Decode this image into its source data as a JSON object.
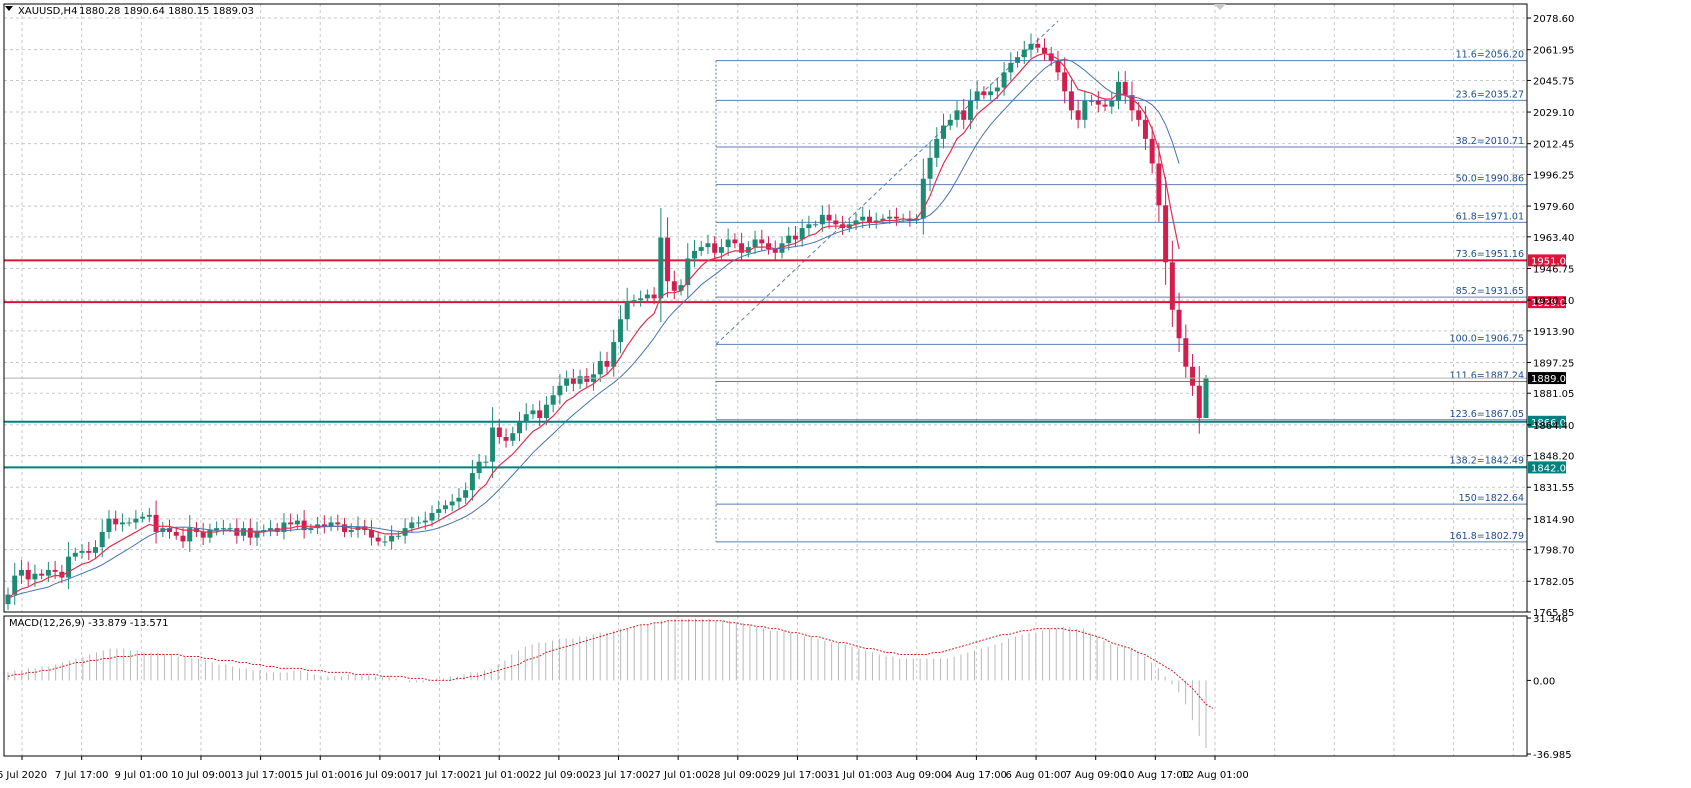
{
  "header": {
    "symbol": "XAUUSD,H4",
    "ohlc": "1880.28 1890.64 1880.15 1889.03"
  },
  "macd": {
    "label": "MACD(12,26,9) -33.879 -13.571",
    "ticks": [
      "31.346",
      "0.00",
      "-36.985"
    ],
    "histogram": [
      4,
      5,
      5,
      6,
      6,
      7,
      7,
      8,
      9,
      10,
      11,
      12,
      13,
      14,
      15,
      16,
      16,
      16,
      15,
      15,
      14,
      14,
      14,
      13,
      13,
      12,
      12,
      11,
      11,
      10,
      9,
      8,
      8,
      7,
      6,
      6,
      5,
      5,
      4,
      4,
      4,
      4,
      5,
      5,
      4,
      3,
      2,
      2,
      2,
      2,
      3,
      3,
      3,
      3,
      2,
      2,
      2,
      1,
      0,
      -1,
      -1,
      -1,
      0,
      1,
      1,
      2,
      2,
      3,
      4,
      4,
      5,
      6,
      8,
      10,
      13,
      15,
      17,
      18,
      19,
      19,
      20,
      21,
      21,
      21,
      22,
      22,
      23,
      24,
      24,
      25,
      26,
      26,
      27,
      28,
      28,
      29,
      30,
      30,
      31,
      31,
      31,
      31,
      31,
      31,
      30,
      30,
      30,
      29,
      29,
      28,
      27,
      26,
      25,
      25,
      25,
      24,
      23,
      22,
      22,
      21,
      20,
      19,
      19,
      18,
      17,
      16,
      15,
      14,
      13,
      12,
      12,
      11,
      11,
      11,
      11,
      11,
      11,
      11,
      11,
      12,
      13,
      14,
      15,
      16,
      17,
      18,
      19,
      21,
      22,
      23,
      24,
      24,
      25,
      26,
      26,
      27,
      27,
      26,
      26,
      24,
      22,
      20,
      18,
      17,
      17,
      16,
      15,
      12,
      9,
      6,
      2,
      -2,
      -6,
      -12,
      -20,
      -28,
      -34
    ],
    "signal": [
      2,
      3,
      3,
      4,
      4,
      5,
      5,
      6,
      7,
      8,
      9,
      9,
      10,
      10,
      11,
      11,
      12,
      12,
      12,
      13,
      13,
      13,
      13,
      13,
      13,
      13,
      12,
      12,
      12,
      11,
      11,
      10,
      10,
      10,
      9,
      9,
      8,
      8,
      7,
      7,
      6,
      6,
      6,
      6,
      5,
      5,
      5,
      4,
      4,
      4,
      4,
      3,
      3,
      3,
      3,
      2,
      2,
      2,
      2,
      1,
      1,
      1,
      0,
      0,
      0,
      0,
      1,
      1,
      2,
      2,
      3,
      4,
      5,
      6,
      7,
      8,
      10,
      11,
      12,
      14,
      15,
      16,
      17,
      18,
      19,
      20,
      21,
      22,
      23,
      24,
      25,
      26,
      27,
      28,
      28,
      29,
      29,
      30,
      30,
      30,
      30,
      30,
      30,
      30,
      30,
      30,
      29,
      29,
      28,
      28,
      27,
      27,
      26,
      26,
      25,
      24,
      24,
      23,
      22,
      22,
      21,
      20,
      19,
      19,
      18,
      17,
      16,
      16,
      15,
      14,
      14,
      13,
      13,
      13,
      13,
      13,
      14,
      14,
      15,
      16,
      17,
      18,
      19,
      20,
      21,
      22,
      23,
      23,
      24,
      25,
      25,
      26,
      26,
      26,
      26,
      26,
      25,
      25,
      24,
      23,
      22,
      21,
      19,
      18,
      17,
      16,
      14,
      13,
      11,
      9,
      7,
      5,
      2,
      -1,
      -4,
      -8,
      -12,
      -14
    ]
  },
  "chart_data": {
    "type": "candlestick",
    "ylim": [
      1765.85,
      2086
    ],
    "y_ticks": [
      "2078.60",
      "2061.95",
      "2045.75",
      "2029.10",
      "2012.45",
      "1996.25",
      "1979.60",
      "1963.40",
      "1946.75",
      "1930.10",
      "1913.90",
      "1897.25",
      "1881.05",
      "1864.40",
      "1848.20",
      "1831.55",
      "1814.90",
      "1798.70",
      "1782.05",
      "1765.85"
    ],
    "x_labels": [
      "6 Jul 2020",
      "7 Jul 17:00",
      "9 Jul 01:00",
      "10 Jul 09:00",
      "13 Jul 17:00",
      "15 Jul 01:00",
      "16 Jul 09:00",
      "17 Jul 17:00",
      "21 Jul 01:00",
      "22 Jul 09:00",
      "23 Jul 17:00",
      "27 Jul 01:00",
      "28 Jul 09:00",
      "29 Jul 17:00",
      "31 Jul 01:00",
      "3 Aug 09:00",
      "4 Aug 17:00",
      "6 Aug 01:00",
      "7 Aug 09:00",
      "10 Aug 17:00",
      "12 Aug 01:00"
    ],
    "current_price": "1889.03",
    "horizontal_levels": [
      {
        "label": "1951.00",
        "value": 1951.0,
        "color": "#dc143c"
      },
      {
        "label": "1929.00",
        "value": 1929.0,
        "color": "#dc143c"
      },
      {
        "label": "1866.00",
        "value": 1866.0,
        "color": "#008080"
      },
      {
        "label": "1842.00",
        "value": 1842.0,
        "color": "#008080"
      }
    ],
    "fibonacci": [
      {
        "label": "11.6=2056.20",
        "value": 2056.2
      },
      {
        "label": "23.6=2035.27",
        "value": 2035.27
      },
      {
        "label": "38.2=2010.71",
        "value": 2010.71
      },
      {
        "label": "50.0=1990.86",
        "value": 1990.86
      },
      {
        "label": "61.8=1971.01",
        "value": 1971.01
      },
      {
        "label": "73.6=1951.16",
        "value": 1951.16
      },
      {
        "label": "85.2=1931.65",
        "value": 1931.65
      },
      {
        "label": "100.0=1906.75",
        "value": 1906.75
      },
      {
        "label": "111.6=1887.24",
        "value": 1887.24
      },
      {
        "label": "123.6=1867.05",
        "value": 1867.05
      },
      {
        "label": "138.2=1842.49",
        "value": 1842.49
      },
      {
        "label": "150=1822.64",
        "value": 1822.64
      },
      {
        "label": "161.8=1802.79",
        "value": 1802.79
      }
    ],
    "close": [
      1775,
      1785,
      1788,
      1783,
      1786,
      1785,
      1788,
      1787,
      1784,
      1795,
      1797,
      1798,
      1797,
      1800,
      1808,
      1815,
      1812,
      1813,
      1813,
      1815,
      1816,
      1817,
      1808,
      1810,
      1808,
      1806,
      1803,
      1810,
      1808,
      1805,
      1809,
      1810,
      1810,
      1810,
      1806,
      1810,
      1805,
      1808,
      1809,
      1810,
      1808,
      1813,
      1812,
      1814,
      1809,
      1810,
      1812,
      1811,
      1813,
      1812,
      1808,
      1809,
      1811,
      1809,
      1805,
      1803,
      1803,
      1806,
      1806,
      1810,
      1813,
      1813,
      1814,
      1818,
      1820,
      1822,
      1824,
      1826,
      1830,
      1839,
      1845,
      1845,
      1863,
      1858,
      1856,
      1860,
      1866,
      1870,
      1872,
      1868,
      1875,
      1880,
      1885,
      1889,
      1886,
      1890,
      1887,
      1891,
      1898,
      1895,
      1908,
      1920,
      1929,
      1930,
      1931,
      1933,
      1931,
      1963,
      1940,
      1935,
      1938,
      1952,
      1956,
      1958,
      1960,
      1955,
      1958,
      1962,
      1960,
      1955,
      1958,
      1962,
      1960,
      1957,
      1955,
      1960,
      1964,
      1962,
      1968,
      1970,
      1970,
      1975,
      1972,
      1970,
      1968,
      1970,
      1972,
      1974,
      1971,
      1972,
      1973,
      1974,
      1973,
      1973,
      1972,
      1973,
      1994,
      2005,
      2015,
      2022,
      2025,
      2030,
      2025,
      2035,
      2040,
      2038,
      2040,
      2042,
      2050,
      2055,
      2058,
      2062,
      2065,
      2063,
      2060,
      2056,
      2050,
      2040,
      2030,
      2025,
      2035,
      2035,
      2033,
      2032,
      2035,
      2045,
      2038,
      2030,
      2025,
      2015,
      2002,
      1980,
      1950,
      1925,
      1910,
      1895,
      1885,
      1868,
      1889
    ],
    "ma_fast": [
      1773,
      1776,
      1778,
      1779,
      1781,
      1782,
      1784,
      1785,
      1785,
      1787,
      1789,
      1791,
      1792,
      1794,
      1797,
      1800,
      1802,
      1804,
      1806,
      1808,
      1810,
      1812,
      1811,
      1811,
      1811,
      1810,
      1809,
      1809,
      1809,
      1808,
      1808,
      1808,
      1809,
      1809,
      1808,
      1809,
      1808,
      1808,
      1808,
      1809,
      1809,
      1810,
      1810,
      1811,
      1811,
      1811,
      1811,
      1811,
      1811,
      1811,
      1811,
      1810,
      1810,
      1810,
      1809,
      1808,
      1807,
      1807,
      1807,
      1808,
      1809,
      1810,
      1811,
      1812,
      1814,
      1816,
      1818,
      1820,
      1822,
      1826,
      1830,
      1833,
      1839,
      1843,
      1846,
      1849,
      1853,
      1857,
      1861,
      1863,
      1866,
      1869,
      1873,
      1877,
      1879,
      1882,
      1884,
      1886,
      1889,
      1891,
      1895,
      1900,
      1906,
      1911,
      1916,
      1920,
      1923,
      1932,
      1934,
      1934,
      1935,
      1940,
      1944,
      1948,
      1951,
      1952,
      1953,
      1955,
      1956,
      1956,
      1956,
      1958,
      1958,
      1958,
      1957,
      1958,
      1959,
      1960,
      1962,
      1964,
      1965,
      1968,
      1969,
      1969,
      1969,
      1969,
      1970,
      1971,
      1971,
      1971,
      1972,
      1972,
      1972,
      1973,
      1972,
      1973,
      1978,
      1985,
      1994,
      2002,
      2008,
      2015,
      2018,
      2023,
      2028,
      2031,
      2034,
      2037,
      2041,
      2045,
      2049,
      2053,
      2057,
      2059,
      2060,
      2059,
      2057,
      2053,
      2047,
      2041,
      2040,
      2039,
      2037,
      2036,
      2036,
      2039,
      2038,
      2036,
      2033,
      2028,
      2020,
      2009,
      1993,
      1974,
      1957
    ]
  }
}
